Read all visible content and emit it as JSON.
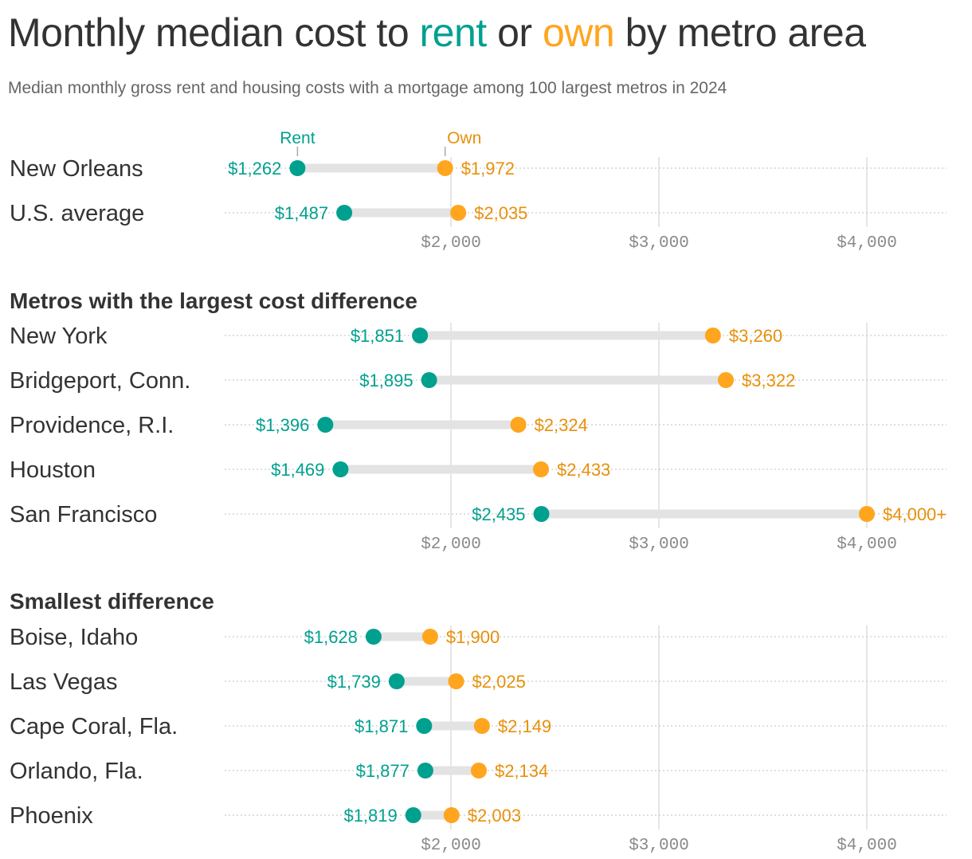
{
  "title": {
    "part1": "Monthly median cost to ",
    "rent": "rent",
    "part2": " or ",
    "own": "own",
    "part3": " by metro area"
  },
  "subtitle": "Median monthly gross rent and housing costs with a mortgage among 100 largest metros in 2024",
  "colors": {
    "rent": "#00a08f",
    "own_dot": "#ffa51e",
    "own_text": "#e8900a",
    "text": "#333333",
    "axis_text": "#8a8a8a",
    "bar": "#e3e3e3"
  },
  "chart_data": {
    "type": "dumbbell",
    "x_axis": {
      "range": [
        910,
        4380
      ],
      "ticks": [
        2000,
        3000,
        4000
      ],
      "tick_labels": [
        "$2,000",
        "$3,000",
        "$4,000"
      ],
      "grid": true
    },
    "legend": {
      "rent": "Rent",
      "own": "Own",
      "placement": "top, above first row"
    },
    "panels": [
      {
        "heading": "",
        "rows": [
          {
            "label": "New Orleans",
            "rent": 1262,
            "own": 1972,
            "rent_label": "$1,262",
            "own_label": "$1,972"
          },
          {
            "label": "U.S. average",
            "rent": 1487,
            "own": 2035,
            "rent_label": "$1,487",
            "own_label": "$2,035"
          }
        ]
      },
      {
        "heading": "Metros with the largest cost difference",
        "rows": [
          {
            "label": "New York",
            "rent": 1851,
            "own": 3260,
            "rent_label": "$1,851",
            "own_label": "$3,260"
          },
          {
            "label": "Bridgeport, Conn.",
            "rent": 1895,
            "own": 3322,
            "rent_label": "$1,895",
            "own_label": "$3,322"
          },
          {
            "label": "Providence, R.I.",
            "rent": 1396,
            "own": 2324,
            "rent_label": "$1,396",
            "own_label": "$2,324"
          },
          {
            "label": "Houston",
            "rent": 1469,
            "own": 2433,
            "rent_label": "$1,469",
            "own_label": "$2,433"
          },
          {
            "label": "San Francisco",
            "rent": 2435,
            "own": 4000,
            "rent_label": "$2,435",
            "own_label": "$4,000+"
          }
        ]
      },
      {
        "heading": "Smallest difference",
        "rows": [
          {
            "label": "Boise, Idaho",
            "rent": 1628,
            "own": 1900,
            "rent_label": "$1,628",
            "own_label": "$1,900"
          },
          {
            "label": "Las Vegas",
            "rent": 1739,
            "own": 2025,
            "rent_label": "$1,739",
            "own_label": "$2,025"
          },
          {
            "label": "Cape Coral, Fla.",
            "rent": 1871,
            "own": 2149,
            "rent_label": "$1,871",
            "own_label": "$2,149"
          },
          {
            "label": "Orlando, Fla.",
            "rent": 1877,
            "own": 2134,
            "rent_label": "$1,877",
            "own_label": "$2,134"
          },
          {
            "label": "Phoenix",
            "rent": 1819,
            "own": 2003,
            "rent_label": "$1,819",
            "own_label": "$2,003"
          }
        ]
      }
    ]
  }
}
